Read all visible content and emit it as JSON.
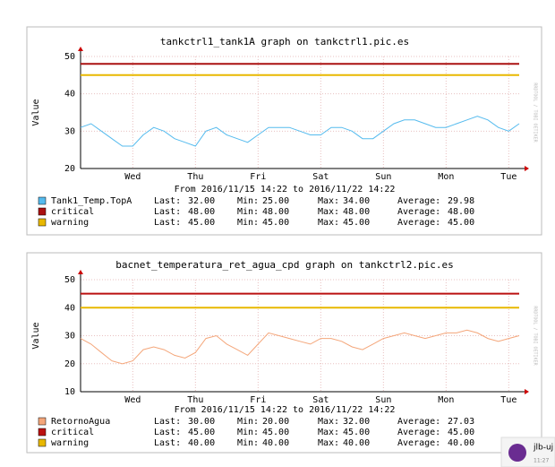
{
  "chart_data": [
    {
      "type": "line",
      "title": "tankctrl1_tank1A graph on tankctrl1.pic.es",
      "y_label": "Value",
      "x_label": "From 2016/11/15 14:22 to 2016/11/22 14:22",
      "watermark": "RRDTOOL / TOBI OETIKER",
      "categories": [
        null,
        null,
        null,
        null,
        null,
        "Wed",
        null,
        null,
        null,
        null,
        null,
        "Thu",
        null,
        null,
        null,
        null,
        null,
        "Fri",
        null,
        null,
        null,
        null,
        null,
        "Sat",
        null,
        null,
        null,
        null,
        null,
        "Sun",
        null,
        null,
        null,
        null,
        null,
        "Mon",
        null,
        null,
        null,
        null,
        null,
        "Tue",
        null
      ],
      "ylim": [
        20,
        50
      ],
      "yticks": [
        20,
        30,
        40,
        50
      ],
      "grid": true,
      "stat_labels": [
        "Last:",
        "Min:",
        "Max:",
        "Average:"
      ],
      "series": [
        {
          "name": "Tank1_Temp.TopA",
          "color": "#55bbee",
          "stats": [
            "32.00",
            "25.00",
            "34.00",
            "29.98"
          ],
          "values": [
            31,
            32,
            30,
            28,
            26,
            26,
            29,
            31,
            30,
            28,
            27,
            26,
            30,
            31,
            29,
            28,
            27,
            29,
            31,
            31,
            31,
            30,
            29,
            29,
            31,
            31,
            30,
            28,
            28,
            30,
            32,
            33,
            33,
            32,
            31,
            31,
            32,
            33,
            34,
            33,
            31,
            30,
            32
          ]
        },
        {
          "name": "critical",
          "color": "#aa1111",
          "stats": [
            "48.00",
            "48.00",
            "48.00",
            "48.00"
          ],
          "values": [
            48,
            48,
            48,
            48,
            48,
            48,
            48,
            48,
            48,
            48,
            48,
            48,
            48,
            48,
            48,
            48,
            48,
            48,
            48,
            48,
            48,
            48,
            48,
            48,
            48,
            48,
            48,
            48,
            48,
            48,
            48,
            48,
            48,
            48,
            48,
            48,
            48,
            48,
            48,
            48,
            48,
            48,
            48
          ]
        },
        {
          "name": "warning",
          "color": "#e8b800",
          "stats": [
            "45.00",
            "45.00",
            "45.00",
            "45.00"
          ],
          "values": [
            45,
            45,
            45,
            45,
            45,
            45,
            45,
            45,
            45,
            45,
            45,
            45,
            45,
            45,
            45,
            45,
            45,
            45,
            45,
            45,
            45,
            45,
            45,
            45,
            45,
            45,
            45,
            45,
            45,
            45,
            45,
            45,
            45,
            45,
            45,
            45,
            45,
            45,
            45,
            45,
            45,
            45,
            45
          ]
        }
      ]
    },
    {
      "type": "line",
      "title": "bacnet_temperatura_ret_agua_cpd graph on tankctrl2.pic.es",
      "y_label": "Value",
      "x_label": "From 2016/11/15 14:22 to 2016/11/22 14:22",
      "watermark": "RRDTOOL / TOBI OETIKER",
      "categories": [
        null,
        null,
        null,
        null,
        null,
        "Wed",
        null,
        null,
        null,
        null,
        null,
        "Thu",
        null,
        null,
        null,
        null,
        null,
        "Fri",
        null,
        null,
        null,
        null,
        null,
        "Sat",
        null,
        null,
        null,
        null,
        null,
        "Sun",
        null,
        null,
        null,
        null,
        null,
        "Mon",
        null,
        null,
        null,
        null,
        null,
        "Tue",
        null
      ],
      "ylim": [
        10,
        50
      ],
      "yticks": [
        10,
        20,
        30,
        40,
        50
      ],
      "grid": true,
      "stat_labels": [
        "Last:",
        "Min:",
        "Max:",
        "Average:"
      ],
      "series": [
        {
          "name": "RetornoAgua",
          "color": "#f4a67a",
          "stats": [
            "30.00",
            "20.00",
            "32.00",
            "27.03"
          ],
          "values": [
            29,
            27,
            24,
            21,
            20,
            21,
            25,
            26,
            25,
            23,
            22,
            24,
            29,
            30,
            27,
            25,
            23,
            27,
            31,
            30,
            29,
            28,
            27,
            29,
            29,
            28,
            26,
            25,
            27,
            29,
            30,
            31,
            30,
            29,
            30,
            31,
            31,
            32,
            31,
            29,
            28,
            29,
            30
          ]
        },
        {
          "name": "critical",
          "color": "#bb1111",
          "stats": [
            "45.00",
            "45.00",
            "45.00",
            "45.00"
          ],
          "values": [
            45,
            45,
            45,
            45,
            45,
            45,
            45,
            45,
            45,
            45,
            45,
            45,
            45,
            45,
            45,
            45,
            45,
            45,
            45,
            45,
            45,
            45,
            45,
            45,
            45,
            45,
            45,
            45,
            45,
            45,
            45,
            45,
            45,
            45,
            45,
            45,
            45,
            45,
            45,
            45,
            45,
            45,
            45
          ]
        },
        {
          "name": "warning",
          "color": "#e8b800",
          "stats": [
            "40.00",
            "40.00",
            "40.00",
            "40.00"
          ],
          "values": [
            40,
            40,
            40,
            40,
            40,
            40,
            40,
            40,
            40,
            40,
            40,
            40,
            40,
            40,
            40,
            40,
            40,
            40,
            40,
            40,
            40,
            40,
            40,
            40,
            40,
            40,
            40,
            40,
            40,
            40,
            40,
            40,
            40,
            40,
            40,
            40,
            40,
            40,
            40,
            40,
            40,
            40,
            40
          ]
        }
      ]
    }
  ],
  "notification": {
    "title": "jlb-uj",
    "time": "11:27"
  }
}
